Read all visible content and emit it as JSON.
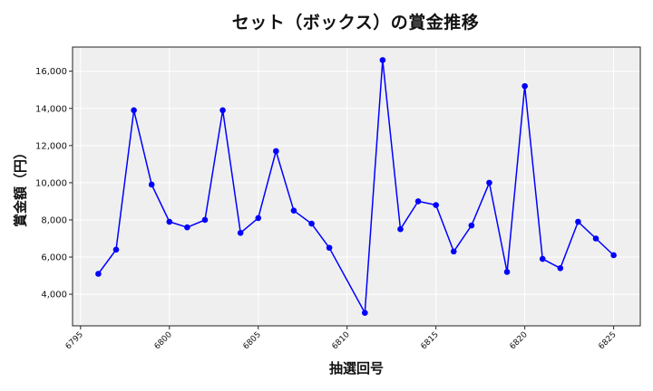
{
  "chart_data": {
    "type": "line",
    "title": "セット（ボックス）の賞金推移",
    "xlabel": "抽選回号",
    "ylabel": "賞金額（円）",
    "x": [
      6796,
      6797,
      6798,
      6799,
      6800,
      6801,
      6802,
      6803,
      6804,
      6805,
      6806,
      6807,
      6808,
      6809,
      6811,
      6812,
      6813,
      6814,
      6815,
      6816,
      6817,
      6818,
      6819,
      6820,
      6821,
      6822,
      6823,
      6824,
      6825
    ],
    "series": [
      {
        "name": "賞金額",
        "values": [
          5100,
          6400,
          13900,
          9900,
          7900,
          7600,
          8000,
          13900,
          7300,
          8100,
          11700,
          8500,
          7800,
          6500,
          3000,
          16600,
          7500,
          9000,
          8800,
          6300,
          7700,
          10000,
          5200,
          15200,
          5900,
          5400,
          7900,
          7000,
          6100
        ],
        "color": "#0000ff",
        "marker": "circle"
      }
    ],
    "xticks": [
      6795,
      6800,
      6805,
      6810,
      6815,
      6820,
      6825
    ],
    "yticks": [
      4000,
      6000,
      8000,
      10000,
      12000,
      14000,
      16000
    ],
    "ytick_labels": [
      "4,000",
      "6,000",
      "8,000",
      "10,000",
      "12,000",
      "14,000",
      "16,000"
    ],
    "xlim": [
      6794.55,
      6826.5
    ],
    "ylim": [
      2300,
      17300
    ],
    "grid": true,
    "legend": null,
    "plot_background": "#efefef",
    "grid_color": "#ffffff"
  }
}
